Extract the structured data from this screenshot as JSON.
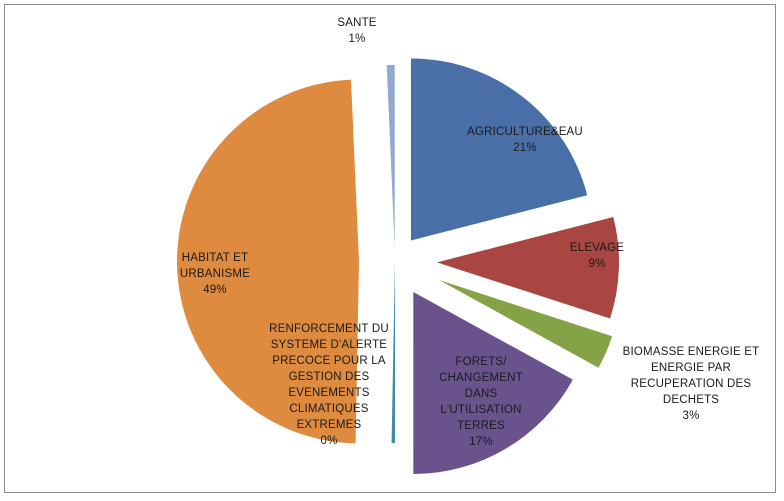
{
  "chart_data": {
    "type": "pie",
    "exploded": true,
    "slices": [
      {
        "label_lines": [
          "AGRICULTURE&EAU",
          "21%"
        ],
        "value": 21,
        "color": "#4a6fa8",
        "label_fill": "#1a1a1a"
      },
      {
        "label_lines": [
          "ELEVAGE",
          "9%"
        ],
        "value": 9,
        "color": "#a94542",
        "label_fill": "#1a1a1a"
      },
      {
        "label_lines": [
          "BIOMASSE ENERGIE ET",
          "ENERGIE PAR",
          "RECUPERATION DES",
          "DECHETS",
          "3%"
        ],
        "value": 3,
        "color": "#85a246",
        "label_fill": "#1a1a1a"
      },
      {
        "label_lines": [
          "FORETS/",
          "CHANGEMENT",
          "DANS",
          "L'UTILISATION",
          "TERRES",
          "17%"
        ],
        "value": 17,
        "color": "#6a538d",
        "label_fill": "#1a1a1a"
      },
      {
        "label_lines": [
          "RENFORCEMENT DU",
          "SYSTEME D'ALERTE",
          "PRECOCE POUR LA",
          "GESTION DES",
          "EVENEMENTS",
          "CLIMATIQUES",
          "EXTREMES",
          "0%"
        ],
        "value": 0.3,
        "color": "#3f8ea0",
        "label_fill": "#1a1a1a"
      },
      {
        "label_lines": [
          "HABITAT ET",
          "URBANISME",
          "49%"
        ],
        "value": 49,
        "color": "#de8a3f",
        "label_fill": "#1a1a1a"
      },
      {
        "label_lines": [
          "SANTE",
          "1%"
        ],
        "value": 0.7,
        "color": "#93a9d0",
        "label_fill": "#1a1a1a"
      }
    ]
  }
}
